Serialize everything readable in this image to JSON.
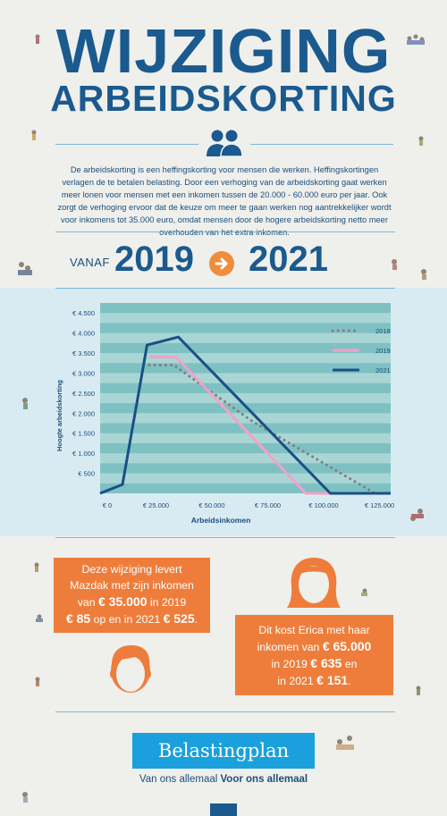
{
  "header": {
    "title_line1": "WIJZIGING",
    "title_line2": "ARBEIDSKORTING"
  },
  "intro_text": "De arbeidskorting is een heffingskorting voor mensen die werken. Heffingskortingen verlagen de te betalen belasting. Door een verhoging van de arbeidskorting gaat werken meer lonen voor mensen met een inkomen tussen de 20.000 - 60.000 euro per jaar. Ook zorgt de verhoging ervoor dat de keuze om meer te gaan werken nog aantrekkelijker wordt voor inkomens tot 35.000 euro, omdat mensen door de hogere arbeidskorting netto meer overhouden van het extra inkomen.",
  "period": {
    "vanaf_label": "VANAF",
    "from_year": "2019",
    "to_year": "2021"
  },
  "chart_data": {
    "type": "line",
    "xlabel": "Arbeidsinkomen",
    "ylabel": "Hoogte arbeidskorting",
    "xlim": [
      0,
      130000
    ],
    "ylim": [
      0,
      4750
    ],
    "x_tick_labels": [
      "€ 0",
      "€ 25.000",
      "€ 50.000",
      "€ 75.000",
      "€ 100.000",
      "€ 125.000"
    ],
    "x_ticks": [
      0,
      25000,
      50000,
      75000,
      100000,
      125000
    ],
    "y_tick_labels": [
      "€ 500",
      "€ 1.000",
      "€ 1.500",
      "€ 2.000",
      "€ 2.500",
      "€ 3.000",
      "€ 3.500",
      "€ 4.000",
      "€ 4.500"
    ],
    "y_ticks": [
      500,
      1000,
      1500,
      2000,
      2500,
      3000,
      3500,
      4000,
      4500
    ],
    "legend_position": "top-right",
    "series": [
      {
        "name": "2018",
        "style": "dotted",
        "color": "#7f7f7f",
        "x": [
          22000,
          33000,
          68000,
          123000
        ],
        "y": [
          3200,
          3200,
          1800,
          0
        ]
      },
      {
        "name": "2019",
        "style": "solid",
        "color": "#f3a1c7",
        "x": [
          22000,
          34000,
          92000,
          102000,
          135000
        ],
        "y": [
          3400,
          3400,
          0,
          0,
          0
        ]
      },
      {
        "name": "2021",
        "style": "solid",
        "color": "#1a4f86",
        "x": [
          0,
          10000,
          21000,
          35000,
          103000,
          135000
        ],
        "y": [
          0,
          220,
          3700,
          3900,
          0,
          0
        ]
      }
    ],
    "grid": true
  },
  "examples": {
    "mazdak_text": "Deze wijziging levert Mazdak met zijn inkomen van € 35.000 in 2019 € 85 op en in 2021 € 525.",
    "mazdak": {
      "line1": "Deze wijziging levert",
      "line2": "Mazdak met zijn inkomen",
      "pre3": "van ",
      "amount_income": "€ 35.000",
      "post3": " in 2019",
      "amount_2019": "€ 85",
      "mid4": " op en in 2021 ",
      "amount_2021": "€ 525",
      "end4": "."
    },
    "erica": {
      "line1": "Dit kost Erica met haar",
      "pre2": "inkomen van ",
      "amount_income": "€ 65.000",
      "pre3": "in 2019 ",
      "amount_2019": "€ 635",
      "post3": " en",
      "pre4": "in 2021 ",
      "amount_2021": "€ 151",
      "end4": "."
    }
  },
  "footer": {
    "brand_button": "Belastingplan",
    "tagline_normal": "Van ons allemaal ",
    "tagline_bold": "Voor ons allemaal"
  },
  "colors": {
    "primary_blue": "#1a5a8e",
    "orange": "#ee7d3b",
    "light_band": "#d9ebf2",
    "chart_band": "#7fc1c2",
    "button_blue": "#1aa0dc"
  },
  "icons": [
    "people-icon",
    "arrow-right-icon",
    "male-face-icon",
    "female-face-icon"
  ]
}
